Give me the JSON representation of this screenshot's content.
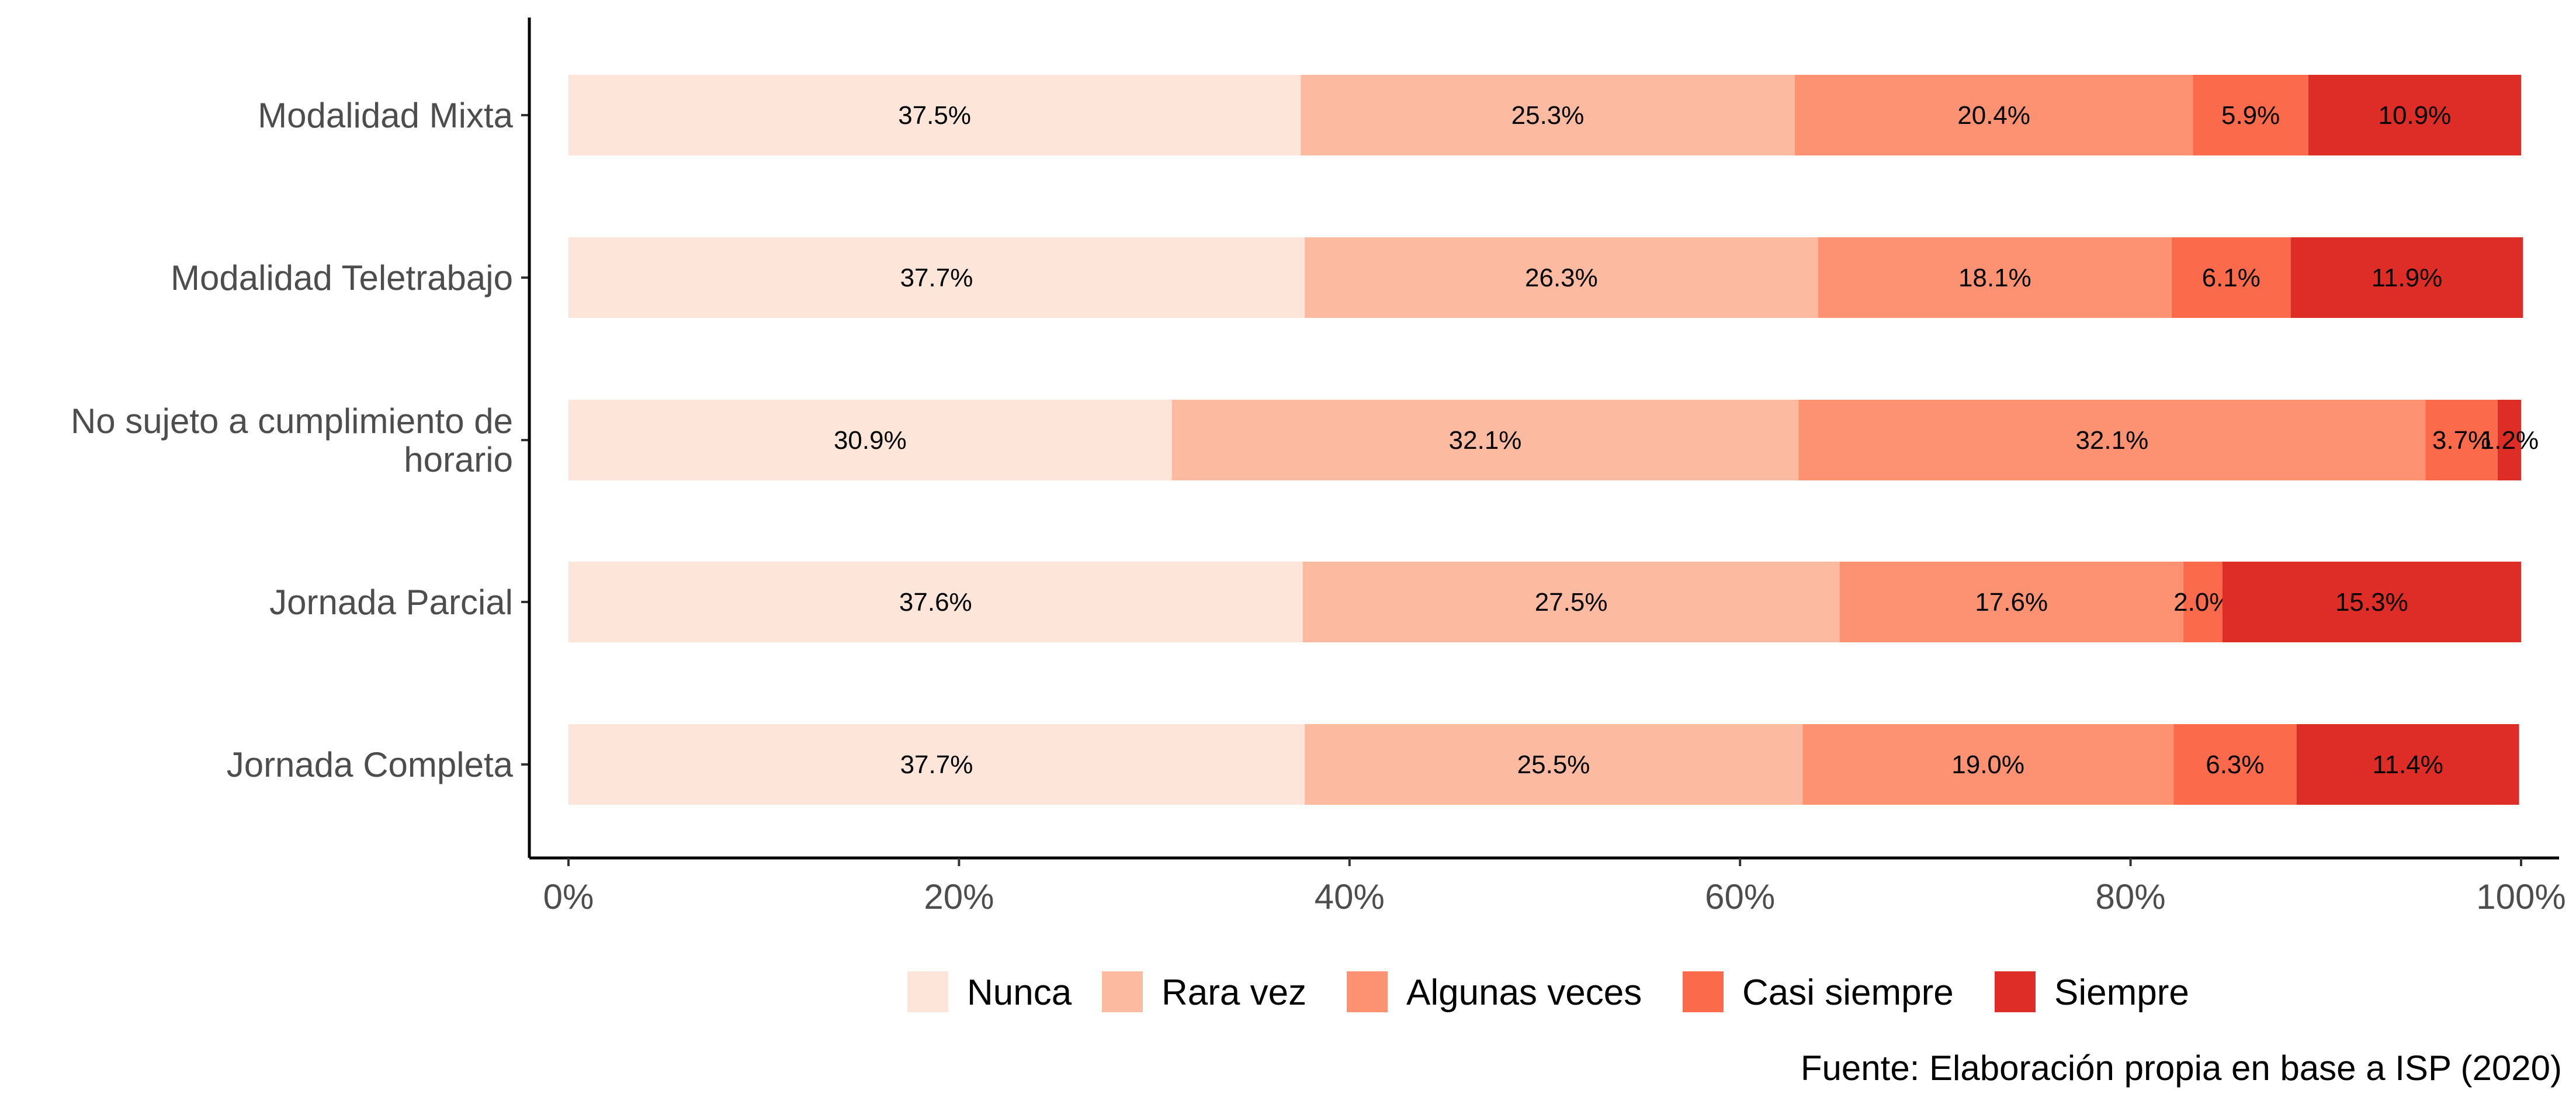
{
  "chart_data": {
    "type": "bar",
    "orientation": "horizontal",
    "stacked": true,
    "categories": [
      "Modalidad Mixta",
      "Modalidad Teletrabajo",
      "No sujeto a cumplimiento de horario",
      "Jornada Parcial",
      "Jornada Completa"
    ],
    "category_lines": [
      [
        "Modalidad Mixta"
      ],
      [
        "Modalidad Teletrabajo"
      ],
      [
        "No sujeto a cumplimiento de",
        "horario"
      ],
      [
        "Jornada Parcial"
      ],
      [
        "Jornada Completa"
      ]
    ],
    "series": [
      {
        "name": "Nunca",
        "color": "#fee5d9",
        "values": [
          37.5,
          37.7,
          30.9,
          37.6,
          37.7
        ],
        "labels": [
          "37.5%",
          "37.7%",
          "30.9%",
          "37.6%",
          "37.7%"
        ]
      },
      {
        "name": "Rara vez",
        "color": "#fcbba1",
        "values": [
          25.3,
          26.3,
          32.1,
          27.5,
          25.5
        ],
        "labels": [
          "25.3%",
          "26.3%",
          "32.1%",
          "27.5%",
          "25.5%"
        ]
      },
      {
        "name": "Algunas veces",
        "color": "#fc9272",
        "values": [
          20.4,
          18.1,
          32.1,
          17.6,
          19.0
        ],
        "labels": [
          "20.4%",
          "18.1%",
          "32.1%",
          "17.6%",
          "19.0%"
        ]
      },
      {
        "name": "Casi siempre",
        "color": "#fb6a4a",
        "values": [
          5.9,
          6.1,
          3.7,
          2.0,
          6.3
        ],
        "labels": [
          "5.9%",
          "6.1%",
          "3.7%",
          "2.0%",
          "6.3%"
        ]
      },
      {
        "name": "Siempre",
        "color": "#de2d26",
        "values": [
          10.9,
          11.9,
          1.2,
          15.3,
          11.4
        ],
        "labels": [
          "10.9%",
          "11.9%",
          "1.2%",
          "15.3%",
          "11.4%"
        ]
      }
    ],
    "xlim": [
      0,
      100
    ],
    "xticks": [
      0,
      20,
      40,
      60,
      80,
      100
    ],
    "xtick_labels": [
      "0%",
      "20%",
      "40%",
      "60%",
      "80%",
      "100%"
    ],
    "xlabel": "",
    "ylabel": "",
    "grid": false,
    "legend_position": "bottom",
    "caption": "Fuente: Elaboración propia en base a ISP (2020)"
  }
}
